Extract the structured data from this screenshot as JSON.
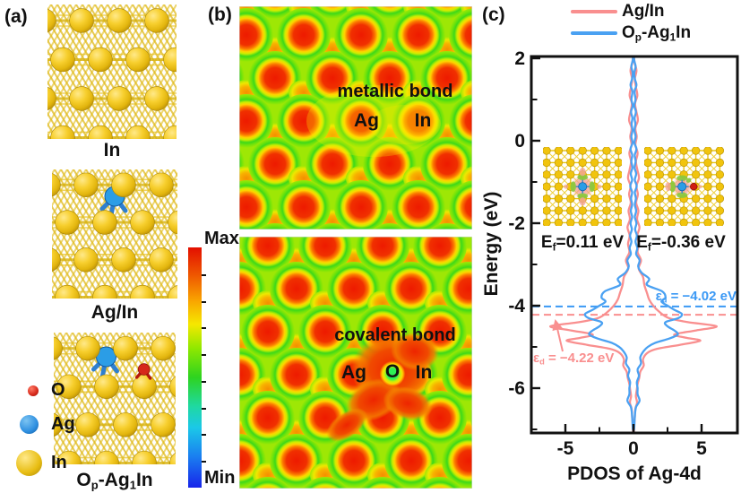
{
  "palette": {
    "gold": "#e8bd12",
    "gold_dark": "#bf9707",
    "gold_light": "#ffe98a",
    "blue_atom": "#2b9de6",
    "red_atom": "#d6281a",
    "curve_pink": "#f98f8f",
    "curve_blue": "#4aa1f2",
    "dash_blue": "#3b99f5",
    "dash_pink": "#f98f8f",
    "axis": "#111111",
    "heat_bg": "#9ee705",
    "heat_red": "#ee1a00",
    "heat_orange": "#f58e00",
    "o_green": "#2ef056"
  },
  "panels": {
    "a": "(a)",
    "b": "(b)",
    "c": "(c)"
  },
  "panel_a": {
    "structures": [
      {
        "label_parts": [
          [
            "In",
            ""
          ]
        ]
      },
      {
        "label_parts": [
          [
            "Ag/In",
            ""
          ]
        ]
      },
      {
        "label_parts": [
          [
            "O",
            ""
          ],
          [
            "p",
            "sub"
          ],
          [
            "-Ag",
            ""
          ],
          [
            "1",
            "sub"
          ],
          [
            "In",
            ""
          ]
        ]
      }
    ],
    "legend": [
      {
        "label": "O",
        "color": "#d6281a"
      },
      {
        "label": "Ag",
        "color": "#2e8fe0"
      },
      {
        "label": "In",
        "color": "#e8bd12"
      }
    ]
  },
  "colorbar": {
    "max_label": "Max",
    "min_label": "Min",
    "stops": [
      [
        "#e30f00",
        0
      ],
      [
        "#ef5a00",
        0.12
      ],
      [
        "#f9a300",
        0.22
      ],
      [
        "#f6e800",
        0.32
      ],
      [
        "#8fe800",
        0.42
      ],
      [
        "#2ed31f",
        0.54
      ],
      [
        "#1fd9a0",
        0.66
      ],
      [
        "#1bc8e8",
        0.75
      ],
      [
        "#1a7ff0",
        0.87
      ],
      [
        "#1724ea",
        1
      ]
    ]
  },
  "panel_b": {
    "maps": [
      {
        "bond_label": "metallic bond",
        "atom_labels": [
          "Ag",
          "In"
        ]
      },
      {
        "bond_label": "covalent bond",
        "atom_labels": [
          "Ag",
          "O",
          "In"
        ]
      }
    ]
  },
  "panel_c": {
    "legend": [
      {
        "parts": [
          [
            "Ag/In",
            ""
          ]
        ],
        "color": "#f98f8f"
      },
      {
        "parts": [
          [
            "O",
            ""
          ],
          [
            "p",
            "sub"
          ],
          [
            "-Ag",
            ""
          ],
          [
            "1",
            "sub"
          ],
          [
            "In",
            ""
          ]
        ],
        "color": "#4aa1f2"
      }
    ],
    "insets": [
      {
        "ef_parts": [
          [
            "E",
            ""
          ],
          [
            "f",
            "sub"
          ],
          [
            "=0.11 eV",
            ""
          ]
        ]
      },
      {
        "ef_parts": [
          [
            "E",
            ""
          ],
          [
            "f",
            "sub"
          ],
          [
            "=-0.36 eV",
            ""
          ]
        ]
      }
    ]
  },
  "chart_data": {
    "type": "line",
    "title": "",
    "xlabel": "PDOS of Ag-4d",
    "ylabel": "Energy (eV)",
    "xlim": [
      -7.5,
      7.6
    ],
    "ylim": [
      -7.05,
      2.05
    ],
    "x_ticks_major": [
      -5,
      0,
      5
    ],
    "x_ticks_minor": [
      -2.5,
      2.5
    ],
    "y_ticks_major": [
      2,
      0,
      -2,
      -4,
      -6
    ],
    "y_ticks_minor": [
      1,
      -1,
      -3,
      -5,
      -7
    ],
    "mirrored": true,
    "grid": false,
    "legend_position": "top",
    "series": [
      {
        "name": "Ag/In",
        "color": "#f98f8f",
        "d_band_center": -4.22,
        "points": [
          [
            2.1,
            0.02
          ],
          [
            1.9,
            0.08
          ],
          [
            1.7,
            0.22
          ],
          [
            1.5,
            0.1
          ],
          [
            1.3,
            0.18
          ],
          [
            1.1,
            0.28
          ],
          [
            0.9,
            0.12
          ],
          [
            0.7,
            0.22
          ],
          [
            0.5,
            0.32
          ],
          [
            0.3,
            0.14
          ],
          [
            0.1,
            0.24
          ],
          [
            -0.1,
            0.14
          ],
          [
            -0.3,
            0.3
          ],
          [
            -0.5,
            0.18
          ],
          [
            -0.7,
            0.28
          ],
          [
            -0.9,
            0.4
          ],
          [
            -1.1,
            0.22
          ],
          [
            -1.3,
            0.32
          ],
          [
            -1.5,
            0.2
          ],
          [
            -1.7,
            0.36
          ],
          [
            -1.9,
            0.26
          ],
          [
            -2.1,
            0.44
          ],
          [
            -2.3,
            0.28
          ],
          [
            -2.5,
            0.4
          ],
          [
            -2.7,
            0.3
          ],
          [
            -2.9,
            0.55
          ],
          [
            -3.1,
            0.38
          ],
          [
            -3.3,
            0.7
          ],
          [
            -3.5,
            0.8
          ],
          [
            -3.7,
            1.0
          ],
          [
            -3.85,
            1.15
          ],
          [
            -4.0,
            1.45
          ],
          [
            -4.15,
            1.9
          ],
          [
            -4.3,
            2.6
          ],
          [
            -4.4,
            4.0
          ],
          [
            -4.5,
            6.1
          ],
          [
            -4.6,
            4.6
          ],
          [
            -4.7,
            3.0
          ],
          [
            -4.78,
            3.9
          ],
          [
            -4.85,
            4.9
          ],
          [
            -4.95,
            3.4
          ],
          [
            -5.05,
            1.7
          ],
          [
            -5.15,
            1.0
          ],
          [
            -5.3,
            0.7
          ],
          [
            -5.45,
            0.75
          ],
          [
            -5.6,
            0.5
          ],
          [
            -5.75,
            0.42
          ],
          [
            -5.9,
            0.3
          ],
          [
            -6.05,
            0.24
          ],
          [
            -6.2,
            0.18
          ],
          [
            -6.35,
            0.26
          ],
          [
            -6.5,
            0.14
          ],
          [
            -6.7,
            0.1
          ],
          [
            -6.9,
            0.05
          ],
          [
            -7.05,
            0.03
          ]
        ]
      },
      {
        "name": "Op-Ag1In",
        "color": "#4aa1f2",
        "d_band_center": -4.02,
        "points": [
          [
            2.1,
            0.02
          ],
          [
            1.95,
            0.05
          ],
          [
            1.8,
            0.16
          ],
          [
            1.65,
            0.06
          ],
          [
            1.5,
            0.1
          ],
          [
            1.35,
            0.22
          ],
          [
            1.2,
            0.08
          ],
          [
            1.0,
            0.15
          ],
          [
            0.85,
            0.06
          ],
          [
            0.7,
            0.18
          ],
          [
            0.55,
            0.08
          ],
          [
            0.4,
            0.14
          ],
          [
            0.25,
            0.07
          ],
          [
            0.1,
            0.16
          ],
          [
            -0.05,
            0.07
          ],
          [
            -0.2,
            0.22
          ],
          [
            -0.35,
            0.09
          ],
          [
            -0.5,
            0.16
          ],
          [
            -0.65,
            0.08
          ],
          [
            -0.8,
            0.2
          ],
          [
            -0.95,
            0.1
          ],
          [
            -1.1,
            0.24
          ],
          [
            -1.25,
            0.1
          ],
          [
            -1.4,
            0.18
          ],
          [
            -1.55,
            0.1
          ],
          [
            -1.7,
            0.2
          ],
          [
            -1.85,
            0.1
          ],
          [
            -2.0,
            0.22
          ],
          [
            -2.15,
            0.12
          ],
          [
            -2.3,
            0.25
          ],
          [
            -2.45,
            0.15
          ],
          [
            -2.6,
            0.28
          ],
          [
            -2.75,
            0.2
          ],
          [
            -2.9,
            0.45
          ],
          [
            -3.05,
            0.35
          ],
          [
            -3.2,
            0.6
          ],
          [
            -3.35,
            1.15
          ],
          [
            -3.5,
            1.0
          ],
          [
            -3.65,
            2.1
          ],
          [
            -3.8,
            2.35
          ],
          [
            -3.9,
            2.05
          ],
          [
            -4.0,
            2.5
          ],
          [
            -4.1,
            3.0
          ],
          [
            -4.2,
            3.55
          ],
          [
            -4.3,
            3.3
          ],
          [
            -4.4,
            2.35
          ],
          [
            -4.5,
            2.5
          ],
          [
            -4.6,
            3.0
          ],
          [
            -4.7,
            3.25
          ],
          [
            -4.8,
            2.6
          ],
          [
            -4.9,
            1.6
          ],
          [
            -5.0,
            1.05
          ],
          [
            -5.1,
            0.75
          ],
          [
            -5.25,
            0.5
          ],
          [
            -5.4,
            0.55
          ],
          [
            -5.55,
            0.3
          ],
          [
            -5.7,
            0.4
          ],
          [
            -5.85,
            0.25
          ],
          [
            -6.0,
            0.3
          ],
          [
            -6.15,
            0.3
          ],
          [
            -6.3,
            0.45
          ],
          [
            -6.45,
            0.2
          ],
          [
            -6.6,
            0.12
          ],
          [
            -6.8,
            0.08
          ],
          [
            -7.0,
            0.04
          ]
        ]
      }
    ],
    "annotations": [
      {
        "parts": [
          [
            "ε",
            ""
          ],
          [
            "d",
            "sub"
          ],
          [
            " = −4.02 eV",
            ""
          ]
        ],
        "color": "#3b99f5",
        "energy": -4.02
      },
      {
        "parts": [
          [
            "ε",
            ""
          ],
          [
            "d",
            "sub"
          ],
          [
            " = −4.22 eV",
            ""
          ]
        ],
        "color": "#f98f8f",
        "energy": -4.22
      }
    ]
  }
}
